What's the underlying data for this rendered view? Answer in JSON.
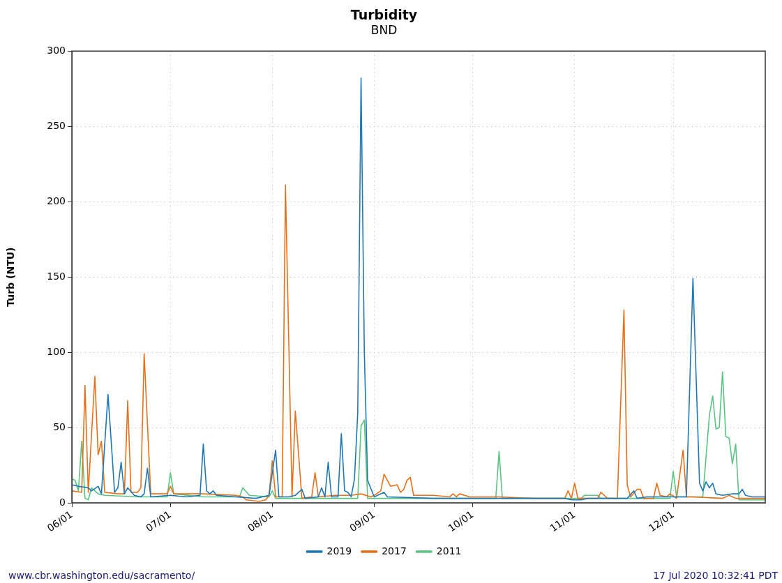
{
  "chart_data": {
    "type": "line",
    "title": "Turbidity",
    "subtitle": "BND",
    "ylabel": "Turb (NTU)",
    "xlim": [
      "--06-01",
      "--12-29"
    ],
    "xticks": [
      {
        "value": "--06-01",
        "label": "06/01"
      },
      {
        "value": "--07-01",
        "label": "07/01"
      },
      {
        "value": "--08-01",
        "label": "08/01"
      },
      {
        "value": "--09-01",
        "label": "09/01"
      },
      {
        "value": "--10-01",
        "label": "10/01"
      },
      {
        "value": "--11-01",
        "label": "11/01"
      },
      {
        "value": "--12-01",
        "label": "12/01"
      }
    ],
    "ylim": [
      0,
      300
    ],
    "yticks": [
      0,
      50,
      100,
      150,
      200,
      250,
      300
    ],
    "grid": true,
    "legend": "bottom",
    "marker": "none",
    "annotations": [
      "www.cbr.washington.edu/sacramento/",
      "17 Jul 2020 10:32:41 PDT"
    ],
    "series": [
      {
        "name": "2019",
        "color": "#1f78b4",
        "x": [
          "--06-01",
          "--06-03",
          "--06-06",
          "--06-07",
          "--06-09",
          "--06-10",
          "--06-12",
          "--06-13",
          "--06-14",
          "--06-15",
          "--06-16",
          "--06-17",
          "--06-18",
          "--06-20",
          "--06-22",
          "--06-23",
          "--06-24",
          "--06-25",
          "--07-01",
          "--07-06",
          "--07-10",
          "--07-11",
          "--07-12",
          "--07-13",
          "--07-14",
          "--07-15",
          "--07-21",
          "--07-27",
          "--07-31",
          "--08-02",
          "--08-03",
          "--08-06",
          "--08-08",
          "--08-10",
          "--08-11",
          "--08-15",
          "--08-16",
          "--08-17",
          "--08-18",
          "--08-19",
          "--08-21",
          "--08-22",
          "--08-23",
          "--08-24",
          "--08-25",
          "--08-26",
          "--08-27",
          "--08-28",
          "--08-29",
          "--08-30",
          "--09-01",
          "--09-04",
          "--09-05",
          "--09-19",
          "--10-09",
          "--10-29",
          "--10-31",
          "--11-03",
          "--11-05",
          "--11-17",
          "--11-19",
          "--11-20",
          "--11-23",
          "--12-01",
          "--12-05",
          "--12-07",
          "--12-09",
          "--12-10",
          "--12-11",
          "--12-12",
          "--12-13",
          "--12-14",
          "--12-16",
          "--12-19",
          "--12-21",
          "--12-22",
          "--12-23",
          "--12-25",
          "--12-29"
        ],
        "values": [
          12,
          11,
          10,
          8,
          11,
          6,
          72,
          40,
          7,
          10,
          27,
          6,
          10,
          5,
          4,
          6,
          23,
          4,
          5,
          4,
          5,
          39,
          8,
          6,
          8,
          5,
          4,
          3,
          5,
          35,
          4,
          4,
          5,
          9,
          3,
          4,
          10,
          4,
          27,
          4,
          4,
          46,
          8,
          7,
          4,
          16,
          60,
          282,
          100,
          15,
          4,
          7,
          4,
          3,
          3,
          3,
          2,
          2,
          3,
          3,
          8,
          3,
          4,
          4,
          4,
          149,
          13,
          8,
          14,
          10,
          13,
          6,
          5,
          6,
          6,
          9,
          5,
          4,
          4
        ]
      },
      {
        "name": "2017",
        "color": "#e6701a",
        "x": [
          "--06-01",
          "--06-04",
          "--06-05",
          "--06-06",
          "--06-08",
          "--06-09",
          "--06-10",
          "--06-11",
          "--06-15",
          "--06-17",
          "--06-18",
          "--06-19",
          "--06-21",
          "--06-22",
          "--06-23",
          "--06-25",
          "--06-30",
          "--07-01",
          "--07-02",
          "--07-11",
          "--07-21",
          "--07-23",
          "--07-24",
          "--07-28",
          "--07-30",
          "--07-31",
          "--08-01",
          "--08-02",
          "--08-04",
          "--08-05",
          "--08-07",
          "--08-08",
          "--08-10",
          "--08-13",
          "--08-14",
          "--08-15",
          "--08-20",
          "--08-25",
          "--08-28",
          "--08-31",
          "--09-01",
          "--09-03",
          "--09-04",
          "--09-06",
          "--09-08",
          "--09-09",
          "--09-10",
          "--09-11",
          "--09-12",
          "--09-13",
          "--09-19",
          "--09-24",
          "--09-25",
          "--09-26",
          "--09-27",
          "--09-30",
          "--10-09",
          "--10-19",
          "--10-29",
          "--10-30",
          "--10-31",
          "--11-01",
          "--11-02",
          "--11-08",
          "--11-09",
          "--11-11",
          "--11-14",
          "--11-16",
          "--11-17",
          "--11-18",
          "--11-20",
          "--11-21",
          "--11-22",
          "--11-25",
          "--11-26",
          "--11-27",
          "--11-29",
          "--11-30",
          "--12-02",
          "--12-04",
          "--12-05",
          "--12-07",
          "--12-16",
          "--12-18",
          "--12-20",
          "--12-29"
        ],
        "values": [
          8,
          7,
          78,
          7,
          84,
          32,
          41,
          7,
          6,
          6,
          68,
          7,
          7,
          10,
          99,
          6,
          6,
          11,
          6,
          6,
          5,
          4,
          2,
          1,
          2,
          5,
          28,
          4,
          4,
          211,
          4,
          61,
          3,
          4,
          20,
          4,
          5,
          5,
          6,
          4,
          5,
          8,
          19,
          11,
          12,
          7,
          9,
          15,
          17,
          5,
          5,
          4,
          6,
          4,
          6,
          4,
          4,
          3,
          3,
          8,
          3,
          13,
          3,
          3,
          7,
          3,
          3,
          128,
          12,
          4,
          9,
          9,
          3,
          3,
          13,
          5,
          4,
          6,
          3,
          35,
          4,
          4,
          3,
          5,
          3,
          3
        ]
      },
      {
        "name": "2011",
        "color": "#5ac482",
        "x": [
          "--06-01",
          "--06-02",
          "--06-03",
          "--06-04",
          "--06-05",
          "--06-06",
          "--06-07",
          "--06-09",
          "--06-11",
          "--06-21",
          "--06-30",
          "--07-01",
          "--07-02",
          "--07-11",
          "--07-22",
          "--07-23",
          "--07-25",
          "--07-31",
          "--08-01",
          "--08-02",
          "--08-27",
          "--08-28",
          "--08-29",
          "--08-30",
          "--09-09",
          "--10-08",
          "--10-09",
          "--10-10",
          "--11-03",
          "--11-04",
          "--11-08",
          "--11-09",
          "--11-30",
          "--12-01",
          "--12-02",
          "--12-10",
          "--12-12",
          "--12-13",
          "--12-14",
          "--12-15",
          "--12-16",
          "--12-17",
          "--12-18",
          "--12-19",
          "--12-20",
          "--12-21",
          "--12-29"
        ],
        "values": [
          16,
          15,
          8,
          41,
          3,
          2,
          10,
          6,
          5,
          4,
          4,
          20,
          6,
          4,
          4,
          10,
          5,
          4,
          8,
          3,
          3,
          51,
          55,
          3,
          3,
          3,
          34,
          3,
          3,
          5,
          5,
          3,
          3,
          21,
          4,
          4,
          58,
          71,
          49,
          50,
          87,
          44,
          43,
          26,
          39,
          2,
          2
        ]
      }
    ]
  }
}
